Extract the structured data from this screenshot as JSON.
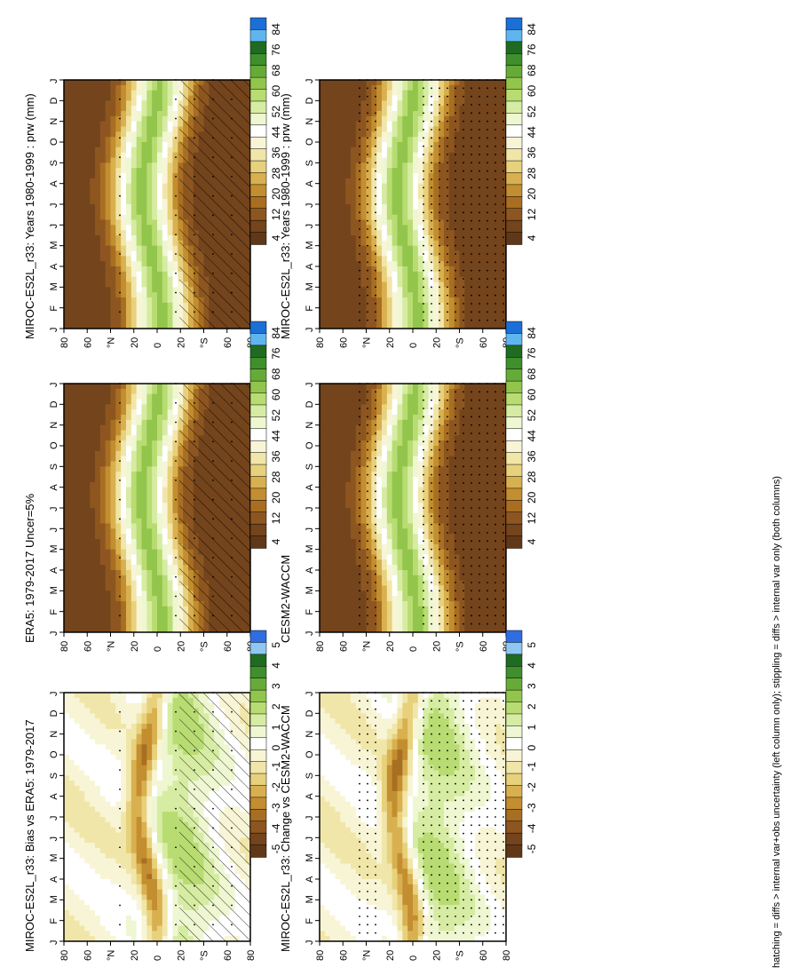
{
  "footer_note": "hatching = diffs > internal var+obs uncertainty (left column only); stippling = diffs > internal var only (both columns)",
  "months": [
    "J",
    "F",
    "M",
    "A",
    "M",
    "J",
    "J",
    "A",
    "S",
    "O",
    "N",
    "D",
    "J"
  ],
  "lat_ticks": [
    "80",
    "60",
    "°N",
    "20",
    "0",
    "20",
    "°S",
    "60",
    "80"
  ],
  "lat_values": [
    80,
    60,
    40,
    20,
    0,
    -20,
    -40,
    -60,
    -80
  ],
  "colorbars": {
    "abs": {
      "labels": [
        "84",
        "76",
        "68",
        "60",
        "52",
        "44",
        "36",
        "28",
        "20",
        "12",
        "4"
      ],
      "colors": [
        "#1c6fd6",
        "#5fb6ee",
        "#1f6b21",
        "#3f8f2c",
        "#66ab38",
        "#92c54c",
        "#b8dc72",
        "#d6eca2",
        "#eef7d2",
        "#ffffff",
        "#f8f5d6",
        "#f1e6a9",
        "#e8d17c",
        "#d9b04f",
        "#c38e30",
        "#a86e22",
        "#8d5620",
        "#74441c",
        "#603818"
      ]
    },
    "diff": {
      "labels": [
        "5",
        "4",
        "3",
        "2",
        "1",
        "0",
        "-1",
        "-2",
        "-3",
        "-4",
        "-5"
      ],
      "colors": [
        "#2f6ee0",
        "#8fc7f2",
        "#1f6b21",
        "#3f8f2c",
        "#66ab38",
        "#92c54c",
        "#b8dc72",
        "#d6eca2",
        "#eef7d2",
        "#ffffff",
        "#f8f5d6",
        "#f1e6a9",
        "#e8d17c",
        "#d9b04f",
        "#c38e30",
        "#a86e22",
        "#8d5620",
        "#74441c",
        "#603818"
      ]
    }
  },
  "panels": [
    {
      "id": "model-left",
      "title": "MIROC-ES2L_r33: Years 1980-1999 : prw (mm)",
      "cbar": "abs",
      "hatch": true,
      "stipple": "light"
    },
    {
      "id": "model-right",
      "title": "MIROC-ES2L_r33: Years 1980-1999 : prw (mm)",
      "cbar": "abs",
      "hatch": false,
      "stipple": "heavy"
    },
    {
      "id": "obs",
      "title": "ERA5: 1979-2017 Uncer=5%",
      "cbar": "abs",
      "hatch": true,
      "stipple": "light"
    },
    {
      "id": "ref",
      "title": "CESM2-WACCM",
      "cbar": "abs",
      "hatch": false,
      "stipple": "heavy"
    },
    {
      "id": "bias",
      "title": "MIROC-ES2L_r33: Bias vs ERA5: 1979-2017",
      "cbar": "diff",
      "hatch": true,
      "stipple": "light"
    },
    {
      "id": "change",
      "title": "MIROC-ES2L_r33: Change vs CESM2-WACCM",
      "cbar": "diff",
      "hatch": false,
      "stipple": "heavy"
    }
  ],
  "chart_data": [
    {
      "type": "heatmap",
      "title": "MIROC-ES2L_r33: Years 1980-1999 : prw (mm)",
      "x": "month",
      "y": "latitude",
      "categories": [
        "J",
        "F",
        "M",
        "A",
        "M",
        "J",
        "J",
        "A",
        "S",
        "O",
        "N",
        "D",
        "J"
      ],
      "y_ticks": [
        80,
        60,
        40,
        20,
        0,
        -20,
        -40,
        -60,
        -80
      ],
      "colorbar": [
        84,
        76,
        68,
        60,
        52,
        44,
        36,
        28,
        20,
        12,
        4
      ],
      "zmax_approx": 55,
      "zmin_approx": 3
    },
    {
      "type": "heatmap",
      "title": "ERA5: 1979-2017 Uncer=5%",
      "x": "month",
      "y": "latitude",
      "colorbar": [
        84,
        76,
        68,
        60,
        52,
        44,
        36,
        28,
        20,
        12,
        4
      ]
    },
    {
      "type": "heatmap",
      "title": "CESM2-WACCM",
      "x": "month",
      "y": "latitude",
      "colorbar": [
        84,
        76,
        68,
        60,
        52,
        44,
        36,
        28,
        20,
        12,
        4
      ]
    },
    {
      "type": "heatmap",
      "title": "MIROC-ES2L_r33: Bias vs ERA5: 1979-2017",
      "x": "month",
      "y": "latitude",
      "colorbar": [
        5,
        4,
        3,
        2,
        1,
        0,
        -1,
        -2,
        -3,
        -4,
        -5
      ]
    },
    {
      "type": "heatmap",
      "title": "MIROC-ES2L_r33: Change vs CESM2-WACCM",
      "x": "month",
      "y": "latitude",
      "colorbar": [
        5,
        4,
        3,
        2,
        1,
        0,
        -1,
        -2,
        -3,
        -4,
        -5
      ]
    }
  ]
}
